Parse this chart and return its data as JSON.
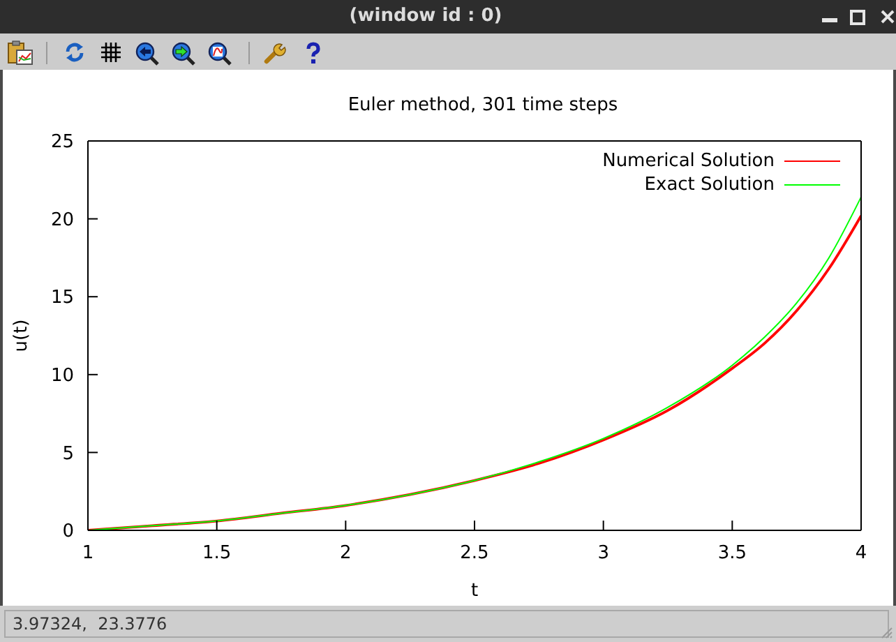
{
  "chart_data": {
    "type": "line",
    "title": "Euler method, 301 time steps",
    "xlabel": "t",
    "ylabel": "u(t)",
    "x": [
      1,
      1.25,
      1.5,
      1.75,
      2,
      2.25,
      2.5,
      2.75,
      3,
      3.25,
      3.5,
      3.625,
      3.75,
      3.875,
      4
    ],
    "series": [
      {
        "name": "Numerical Solution",
        "color": "#ff0000",
        "values": [
          0,
          0.3,
          0.6,
          1.1,
          1.6,
          2.3,
          3.2,
          4.3,
          5.8,
          7.7,
          10.4,
          12.0,
          14.1,
          16.8,
          20.2
        ]
      },
      {
        "name": "Exact Solution",
        "color": "#00ff00",
        "values": [
          0,
          0.3,
          0.6,
          1.1,
          1.6,
          2.3,
          3.2,
          4.4,
          5.9,
          7.9,
          10.6,
          12.4,
          14.6,
          17.5,
          21.4
        ]
      }
    ],
    "xlim": [
      1,
      4
    ],
    "xticks": [
      1,
      1.5,
      2,
      2.5,
      3,
      3.5,
      4
    ],
    "ylim": [
      0,
      25
    ],
    "yticks": [
      0,
      5,
      10,
      15,
      20,
      25
    ],
    "legend": "top right",
    "annotations": [
      "(window id : 0)",
      "3.97324,  23.3776"
    ]
  }
}
